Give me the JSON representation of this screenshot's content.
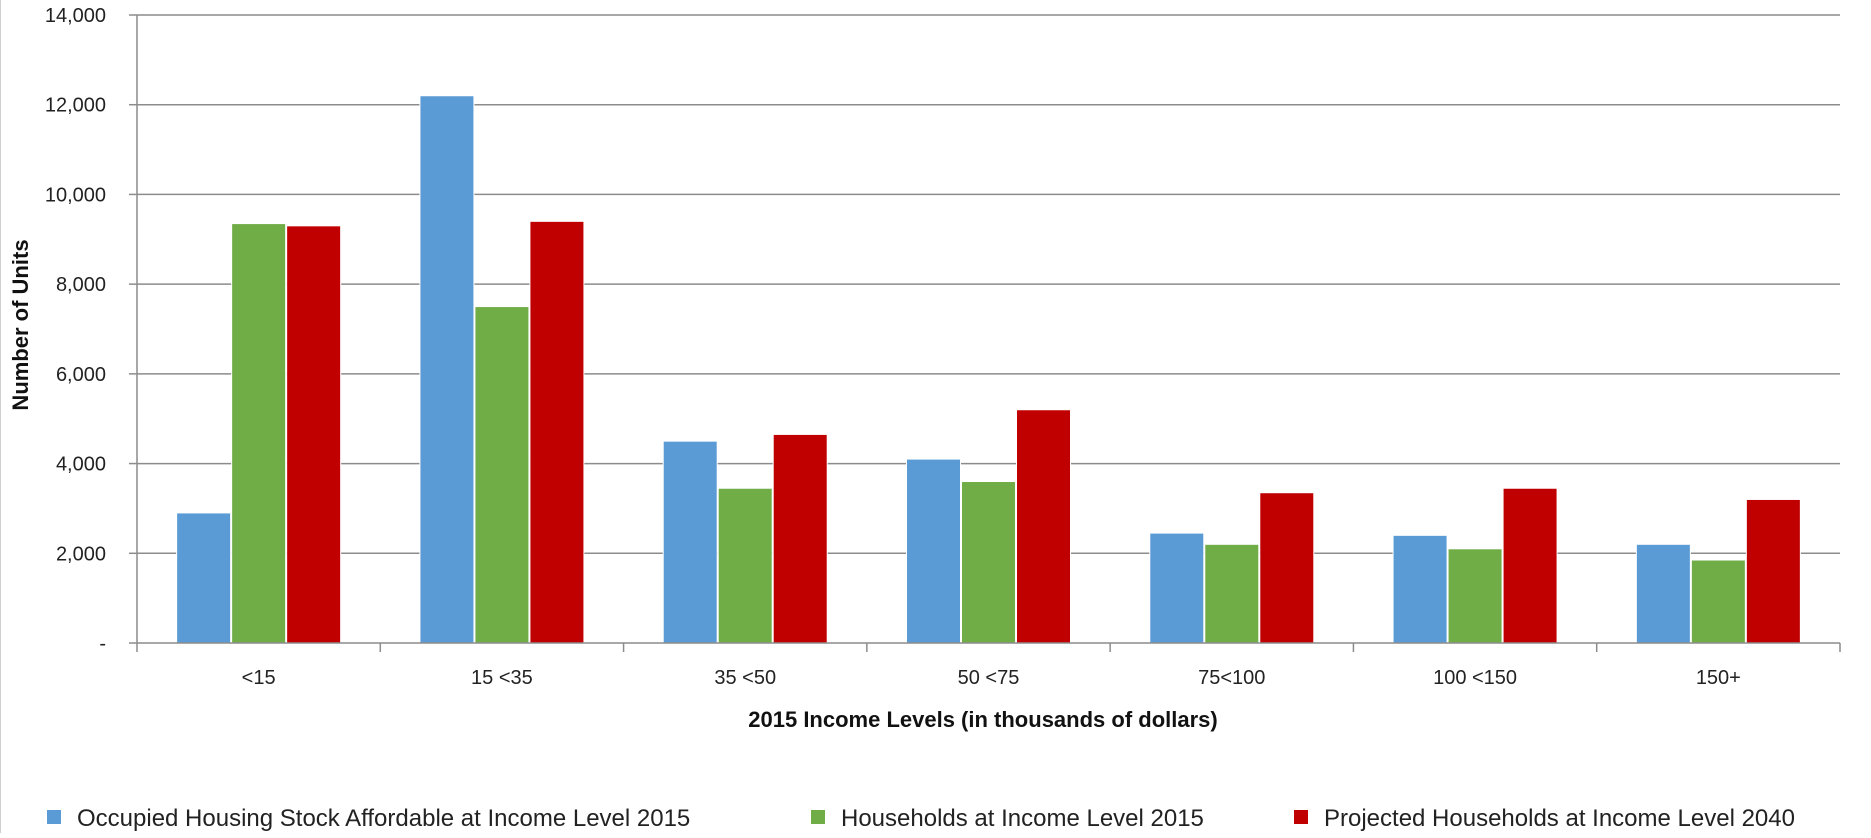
{
  "chart_data": {
    "type": "bar",
    "title": "",
    "xlabel": "2015 Income Levels (in thousands of dollars)",
    "ylabel": "Number of Units",
    "categories": [
      "<15",
      "15 <35",
      "35 <50",
      "50 <75",
      "75<100",
      "100 <150",
      "150+"
    ],
    "ylim": [
      0,
      14000
    ],
    "yticks": [
      0,
      2000,
      4000,
      6000,
      8000,
      10000,
      12000,
      14000
    ],
    "ytick_labels": [
      "-",
      "2,000",
      "4,000",
      "6,000",
      "8,000",
      "10,000",
      "12,000",
      "14,000"
    ],
    "grid": true,
    "legend_position": "bottom",
    "series": [
      {
        "name": "Occupied Housing Stock Affordable at Income Level 2015",
        "color": "#5b9bd5",
        "values": [
          2900,
          12200,
          4500,
          4100,
          2450,
          2400,
          2200
        ]
      },
      {
        "name": "Households at Income Level 2015",
        "color": "#70ad47",
        "values": [
          9350,
          7500,
          3450,
          3600,
          2200,
          2100,
          1850
        ]
      },
      {
        "name": "Projected Households at Income Level 2040",
        "color": "#c00000",
        "values": [
          9300,
          9400,
          4650,
          5200,
          3350,
          3450,
          3200
        ]
      }
    ]
  }
}
